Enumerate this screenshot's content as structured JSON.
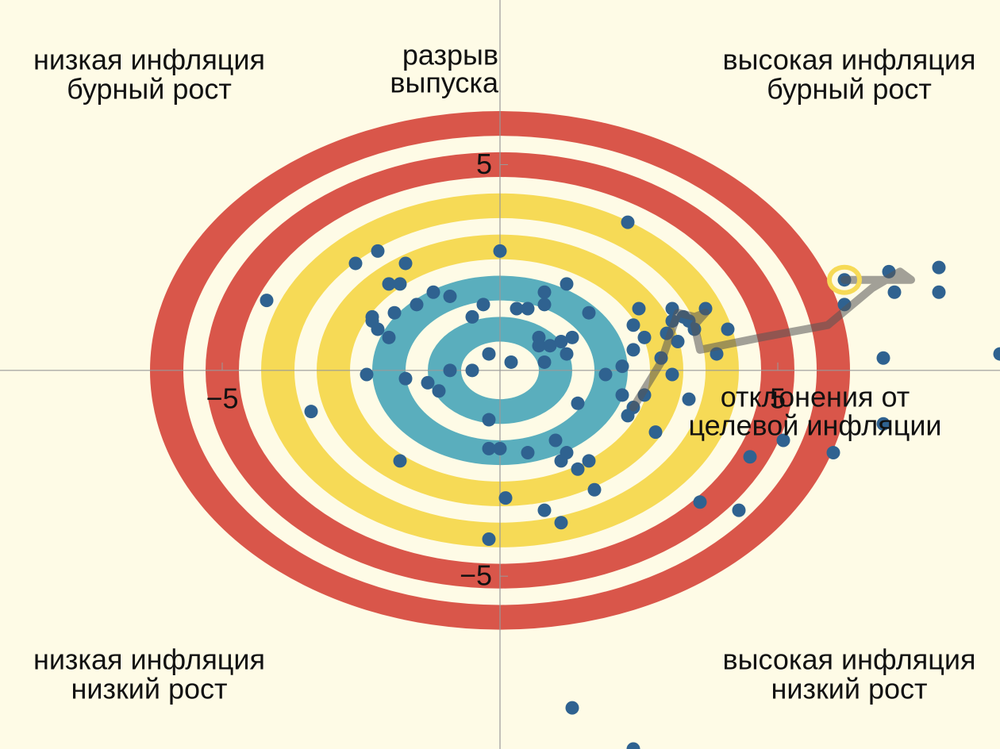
{
  "chart_data": {
    "type": "scatter",
    "xlabel": [
      "отклонения от",
      "целевой инфляции"
    ],
    "ylabel": [
      "разрыв",
      "выпуска"
    ],
    "xlim": [
      -9,
      9
    ],
    "ylim": [
      -9.2,
      9
    ],
    "xticks": [
      {
        "value": -5,
        "label": "−5"
      },
      5
    ],
    "yticks": [
      {
        "value": -5,
        "label": "−5"
      },
      5
    ],
    "rings": {
      "radii": [
        1,
        2,
        3,
        4,
        5,
        6
      ],
      "colors": [
        "#5aaebd",
        "#5aaebd",
        "#f6da56",
        "#f6da56",
        "#d9564a",
        "#d9564a"
      ],
      "width": 0.6
    },
    "points": {
      "color": "#2f6290",
      "x": [
        2.3,
        0.0,
        -2.2,
        -2.6,
        -1.7,
        1.2,
        -1.8,
        -2.0,
        -4.2,
        -1.2,
        -0.9,
        -1.5,
        -0.3,
        0.8,
        0.3,
        0.5,
        0.8,
        1.6,
        -1.9,
        -0.5,
        -2.3,
        -2.3,
        -2.2,
        -2.0,
        2.5,
        3.1,
        3.7,
        3.3,
        3.1,
        2.4,
        3.4,
        3.5,
        4.1,
        3.0,
        2.6,
        3.2,
        0.7,
        1.3,
        0.7,
        0.9,
        1.1,
        2.4,
        1.2,
        -0.2,
        3.9,
        0.8,
        0.2,
        2.9,
        2.2,
        3.1,
        -2.4,
        -0.9,
        -0.5,
        1.9,
        -1.7,
        -1.3,
        -1.1,
        2.6,
        2.2,
        3.4,
        2.4,
        1.4,
        2.3,
        -3.4,
        -0.2,
        2.8,
        5.1,
        6.9,
        0.0,
        -0.2,
        0.5,
        1.0,
        1.2,
        1.1,
        1.6,
        1.4,
        -1.8,
        4.5,
        6.0,
        1.7,
        0.1,
        3.6,
        4.3,
        0.8,
        1.1,
        -0.2,
        1.3,
        2.4,
        6.2,
        7.0,
        7.9,
        7.1,
        7.9,
        6.2,
        6.9,
        9.0
      ],
      "y": [
        3.6,
        2.9,
        2.9,
        2.6,
        2.6,
        2.1,
        2.1,
        2.1,
        1.7,
        1.9,
        1.8,
        1.6,
        1.6,
        1.9,
        1.5,
        1.5,
        1.6,
        1.4,
        1.4,
        1.3,
        1.3,
        1.2,
        1.0,
        0.8,
        1.5,
        1.5,
        1.5,
        1.3,
        1.2,
        1.1,
        1.2,
        1.0,
        1.0,
        0.9,
        0.8,
        0.7,
        0.8,
        0.8,
        0.6,
        0.6,
        0.7,
        0.5,
        0.4,
        0.4,
        0.4,
        0.2,
        0.2,
        0.3,
        0.1,
        -0.1,
        -0.1,
        0.0,
        0.0,
        -0.1,
        -0.2,
        -0.3,
        -0.5,
        -0.6,
        -0.6,
        -0.7,
        -0.9,
        -0.8,
        -1.1,
        -1.0,
        -1.2,
        -1.5,
        -1.7,
        -1.3,
        -1.9,
        -1.9,
        -2.0,
        -1.7,
        -2.0,
        -2.2,
        -2.2,
        -2.4,
        -2.2,
        -2.1,
        -2.0,
        -2.9,
        -3.1,
        -3.2,
        -3.4,
        -3.4,
        -3.7,
        -4.1,
        -8.2,
        -9.2,
        2.2,
        2.4,
        2.5,
        1.9,
        1.9,
        1.6,
        0.3,
        0.4
      ]
    },
    "trail": {
      "color": "#555555",
      "x": [
        2.4,
        2.9,
        3.2,
        3.5,
        3.7,
        3.5,
        3.6,
        4.7,
        5.9,
        6.7,
        7.2,
        7.4,
        6.2
      ],
      "y": [
        -0.9,
        0.2,
        1.4,
        1.3,
        1.4,
        1.1,
        0.5,
        0.8,
        1.1,
        2.0,
        2.4,
        2.2,
        2.2
      ]
    },
    "highlight": {
      "x": 6.2,
      "y": 2.2,
      "color": "#f6da56"
    },
    "annotations": [
      {
        "corner": "top-left",
        "lines": [
          "низкая инфляция",
          "бурный рост"
        ]
      },
      {
        "corner": "top-right",
        "lines": [
          "высокая инфляция",
          "бурный рост"
        ]
      },
      {
        "corner": "bottom-left",
        "lines": [
          "низкая инфляция",
          "низкий рост"
        ]
      },
      {
        "corner": "bottom-right",
        "lines": [
          "высокая инфляция",
          "низкий рост"
        ]
      }
    ]
  }
}
